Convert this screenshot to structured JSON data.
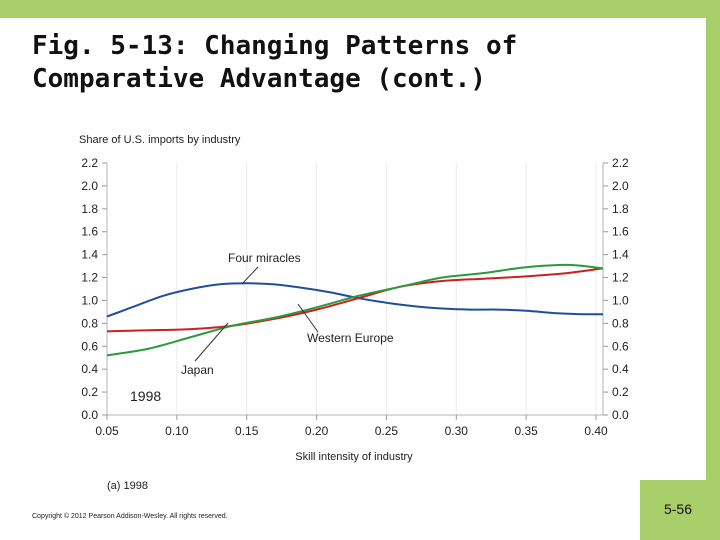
{
  "slide": {
    "title_line1": "Fig. 5-13:  Changing Patterns of",
    "title_line2": "Comparative Advantage (cont.)",
    "copyright": "Copyright © 2012 Pearson Addison-Wesley. All rights reserved.",
    "slide_number": "5-56"
  },
  "colors": {
    "frame": "#a9cf6b",
    "four_miracles": "#1f4e9c",
    "western_europe": "#cc1f1f",
    "japan": "#2a9a3a"
  },
  "chart_data": {
    "type": "line",
    "title": "Share of U.S. imports by industry",
    "xlabel": "Skill intensity of industry",
    "ylabel": "",
    "caption": "(a) 1998",
    "year_label": "1998",
    "xlim": [
      0.05,
      0.405
    ],
    "ylim": [
      0.0,
      2.2
    ],
    "x_ticks": [
      0.05,
      0.1,
      0.15,
      0.2,
      0.25,
      0.3,
      0.35,
      0.4
    ],
    "x_tick_labels": [
      "0.05",
      "0.10",
      "0.15",
      "0.20",
      "0.25",
      "0.30",
      "0.35",
      "0.40"
    ],
    "y_ticks": [
      0.0,
      0.2,
      0.4,
      0.6,
      0.8,
      1.0,
      1.2,
      1.4,
      1.6,
      1.8,
      2.0,
      2.2
    ],
    "y_tick_labels": [
      "0.0",
      "0.2",
      "0.4",
      "0.6",
      "0.8",
      "1.0",
      "1.2",
      "1.4",
      "1.6",
      "1.8",
      "2.0",
      "2.2"
    ],
    "series": [
      {
        "name": "Four miracles",
        "color": "#1f4e9c",
        "x": [
          0.05,
          0.07,
          0.09,
          0.11,
          0.13,
          0.15,
          0.17,
          0.19,
          0.21,
          0.23,
          0.25,
          0.27,
          0.29,
          0.31,
          0.33,
          0.35,
          0.37,
          0.39,
          0.405
        ],
        "y": [
          0.86,
          0.95,
          1.04,
          1.1,
          1.14,
          1.15,
          1.14,
          1.11,
          1.07,
          1.02,
          0.98,
          0.95,
          0.93,
          0.92,
          0.92,
          0.91,
          0.89,
          0.88,
          0.88
        ]
      },
      {
        "name": "Western Europe",
        "color": "#cc1f1f",
        "x": [
          0.05,
          0.08,
          0.11,
          0.14,
          0.17,
          0.2,
          0.23,
          0.26,
          0.29,
          0.32,
          0.35,
          0.38,
          0.405
        ],
        "y": [
          0.73,
          0.74,
          0.75,
          0.78,
          0.84,
          0.92,
          1.02,
          1.12,
          1.17,
          1.19,
          1.21,
          1.24,
          1.28
        ]
      },
      {
        "name": "Japan",
        "color": "#2a9a3a",
        "x": [
          0.05,
          0.08,
          0.11,
          0.14,
          0.17,
          0.2,
          0.23,
          0.26,
          0.29,
          0.32,
          0.35,
          0.38,
          0.405
        ],
        "y": [
          0.52,
          0.58,
          0.68,
          0.78,
          0.85,
          0.94,
          1.04,
          1.12,
          1.2,
          1.24,
          1.29,
          1.31,
          1.28
        ]
      }
    ],
    "annotations": [
      "Four miracles",
      "Western Europe",
      "Japan"
    ]
  }
}
